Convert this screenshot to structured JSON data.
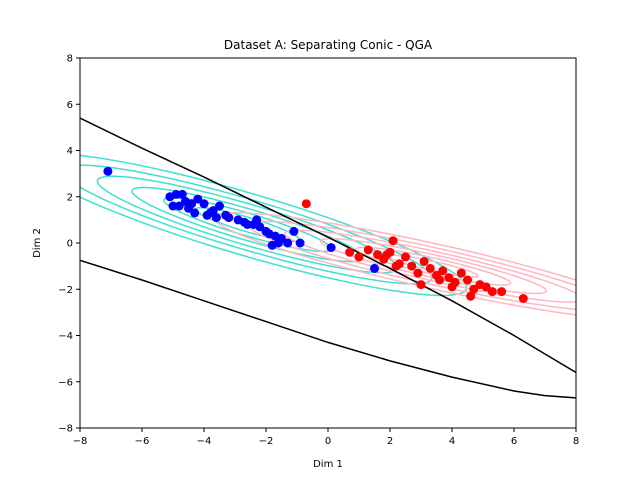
{
  "chart_data": {
    "type": "scatter",
    "title": "Dataset A: Separating Conic - QGA",
    "xlabel": "Dim 1",
    "ylabel": "Dim 2",
    "xlim": [
      -8,
      8
    ],
    "ylim": [
      -8,
      8
    ],
    "xticks": [
      -8,
      -6,
      -4,
      -2,
      0,
      2,
      4,
      6,
      8
    ],
    "yticks": [
      -8,
      -6,
      -4,
      -2,
      0,
      2,
      4,
      6,
      8
    ],
    "grid": false,
    "legend": "none",
    "colors": {
      "class_a": "#0000ff",
      "class_b": "#ff0000",
      "contour_a": "#40e0d0",
      "contour_b": "#ffb6c1",
      "boundary": "#000000"
    },
    "series": [
      {
        "kind": "points",
        "color": "#0000ff",
        "x": [
          -7.1,
          -5.1,
          -4.9,
          -4.7,
          -4.6,
          -4.8,
          -4.5,
          -4.3,
          -4.2,
          -4.0,
          -3.9,
          -3.7,
          -3.6,
          -3.5,
          -3.3,
          -3.2,
          -2.9,
          -2.7,
          -2.6,
          -2.4,
          -2.2,
          -2.0,
          -1.9,
          -1.7,
          -1.5,
          -1.3,
          -1.1,
          -0.9,
          -1.8,
          -2.3,
          -4.4,
          -5.0,
          -3.8,
          -1.6,
          0.1,
          1.5
        ],
        "y": [
          3.1,
          2.0,
          2.1,
          2.1,
          1.8,
          1.6,
          1.5,
          1.3,
          1.9,
          1.7,
          1.2,
          1.4,
          1.1,
          1.6,
          1.2,
          1.1,
          1.0,
          0.9,
          0.8,
          0.8,
          0.7,
          0.5,
          0.4,
          0.3,
          0.2,
          0.0,
          0.5,
          0.0,
          -0.1,
          1.0,
          1.7,
          1.6,
          1.3,
          0.0,
          -0.2,
          -1.1
        ]
      },
      {
        "kind": "points",
        "color": "#ff0000",
        "x": [
          -0.7,
          0.7,
          1.0,
          1.3,
          1.6,
          1.8,
          2.0,
          2.1,
          2.3,
          2.5,
          2.7,
          2.9,
          3.1,
          3.3,
          3.5,
          3.7,
          3.9,
          4.1,
          4.3,
          4.5,
          4.7,
          4.9,
          5.1,
          5.3,
          5.6,
          6.3,
          3.0,
          4.0,
          4.6,
          2.2,
          1.9,
          3.6
        ],
        "y": [
          1.7,
          -0.4,
          -0.6,
          -0.3,
          -0.5,
          -0.7,
          -0.4,
          0.1,
          -0.9,
          -0.6,
          -1.0,
          -1.3,
          -0.8,
          -1.1,
          -1.4,
          -1.2,
          -1.5,
          -1.7,
          -1.3,
          -1.6,
          -2.0,
          -1.8,
          -1.9,
          -2.1,
          -2.1,
          -2.4,
          -1.8,
          -1.9,
          -2.3,
          -1.0,
          -0.5,
          -1.6
        ]
      },
      {
        "kind": "boundary",
        "color": "#000000",
        "x": [
          -8,
          -6,
          -4,
          -2,
          0,
          2,
          4,
          6,
          8
        ],
        "y": [
          5.4,
          4.1,
          2.85,
          1.55,
          0.25,
          -1.1,
          -2.5,
          -4.0,
          -5.6
        ]
      },
      {
        "kind": "boundary",
        "color": "#000000",
        "x": [
          -8,
          -6,
          -4,
          -2,
          0,
          2,
          4,
          6,
          7,
          8
        ],
        "y": [
          -0.75,
          -1.6,
          -2.5,
          -3.4,
          -4.3,
          -5.1,
          -5.8,
          -6.4,
          -6.6,
          -6.7
        ]
      }
    ],
    "contours": [
      {
        "class": "A",
        "color": "#40e0d0",
        "center": [
          -2.6,
          0.8
        ],
        "slope": -0.4,
        "semi_axes": [
          [
            7.6,
            1.3
          ],
          [
            6.4,
            1.05
          ],
          [
            5.2,
            0.85
          ],
          [
            4.0,
            0.65
          ],
          [
            2.9,
            0.47
          ],
          [
            1.8,
            0.3
          ]
        ]
      },
      {
        "class": "B",
        "color": "#ffb6c1",
        "center": [
          3.4,
          -1.0
        ],
        "slope": -0.3,
        "semi_axes": [
          [
            7.4,
            0.95
          ],
          [
            6.2,
            0.78
          ],
          [
            5.0,
            0.62
          ],
          [
            3.8,
            0.48
          ],
          [
            2.6,
            0.34
          ],
          [
            1.5,
            0.2
          ]
        ]
      }
    ]
  }
}
